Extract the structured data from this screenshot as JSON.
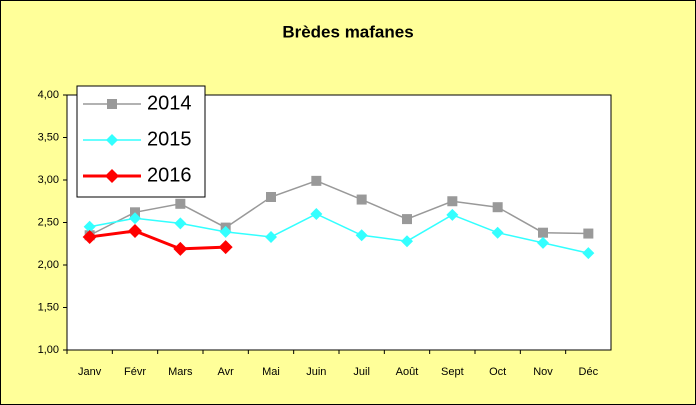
{
  "chart_data": {
    "type": "line",
    "title": "Brèdes mafanes",
    "categories": [
      "Janv",
      "Févr",
      "Mars",
      "Avr",
      "Mai",
      "Juin",
      "Juil",
      "Août",
      "Sept",
      "Oct",
      "Nov",
      "Déc"
    ],
    "series": [
      {
        "name": "2014",
        "color": "#999999",
        "marker": "square",
        "values": [
          2.35,
          2.62,
          2.72,
          2.44,
          2.8,
          2.99,
          2.77,
          2.54,
          2.75,
          2.68,
          2.38,
          2.37
        ]
      },
      {
        "name": "2015",
        "color": "#33ffff",
        "marker": "diamond",
        "values": [
          2.45,
          2.55,
          2.49,
          2.39,
          2.33,
          2.6,
          2.35,
          2.28,
          2.59,
          2.38,
          2.26,
          2.14
        ]
      },
      {
        "name": "2016",
        "color": "#ff0000",
        "marker": "diamond",
        "values": [
          2.33,
          2.4,
          2.19,
          2.21,
          null,
          null,
          null,
          null,
          null,
          null,
          null,
          null
        ]
      }
    ],
    "ylim": [
      1,
      4
    ],
    "yticks": [
      {
        "value": 1,
        "label": "1,00"
      },
      {
        "value": 1.5,
        "label": "1,50"
      },
      {
        "value": 2,
        "label": "2,00"
      },
      {
        "value": 2.5,
        "label": "2,50"
      },
      {
        "value": 3,
        "label": "3,00"
      },
      {
        "value": 3.5,
        "label": "3,50"
      },
      {
        "value": 4,
        "label": "4,00"
      }
    ],
    "grid": false,
    "legend": "upper left"
  }
}
